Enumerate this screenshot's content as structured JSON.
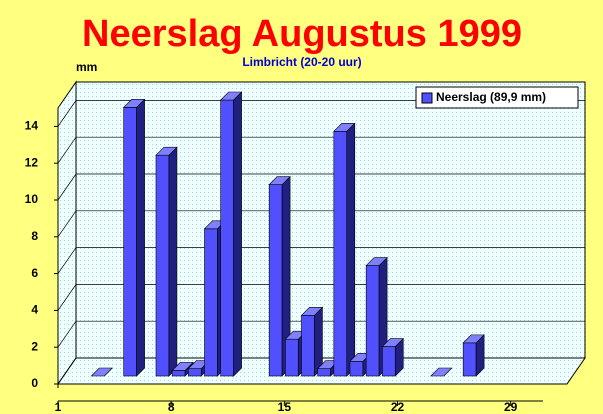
{
  "chart_data": {
    "type": "bar3d",
    "title": "Neerslag Augustus 1999",
    "subtitle": "Limbricht (20-20 uur)",
    "y_label": "mm",
    "x": [
      3,
      5,
      7,
      8,
      9,
      10,
      11,
      14,
      15,
      16,
      17,
      18,
      19,
      20,
      21,
      24,
      26
    ],
    "series": [
      {
        "name": "Neerslag (89,9 mm)",
        "color": "#5050ff",
        "values": [
          0,
          14.6,
          12.0,
          0.3,
          0.4,
          8.0,
          15.0,
          10.4,
          2.0,
          3.3,
          0.4,
          13.3,
          0.8,
          6.0,
          1.6,
          0,
          1.8
        ]
      }
    ],
    "xlim": [
      1,
      31
    ],
    "xticks": [
      1,
      8,
      15,
      22,
      29
    ],
    "ylim": [
      0,
      15
    ],
    "yticks": [
      0,
      2,
      4,
      6,
      8,
      10,
      12,
      14
    ],
    "grid": true,
    "legend": "top-right"
  }
}
